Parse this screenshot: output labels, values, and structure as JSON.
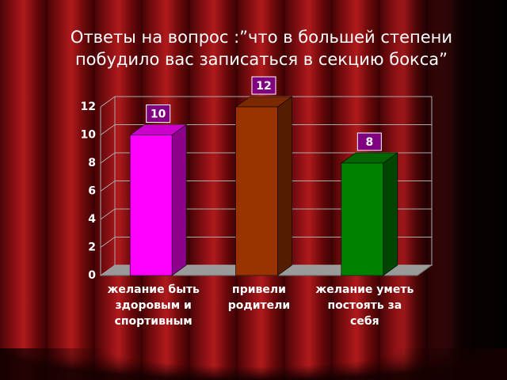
{
  "chart_data": {
    "type": "bar3d",
    "title": [
      "Ответы на вопрос :”что в большей степени",
      "побудило вас записаться в секцию бокса”"
    ],
    "categories": [
      "желание быть здоровым и спортивным",
      "привели родители",
      "желание уметь постоять за себя"
    ],
    "values": [
      10,
      12,
      8
    ],
    "colors": [
      "#ff00ff",
      "#993300",
      "#008000"
    ],
    "label_color": "#800080",
    "ylim": [
      0,
      12
    ],
    "yticks": [
      0,
      2,
      4,
      6,
      8,
      10,
      12
    ],
    "grid": true
  }
}
